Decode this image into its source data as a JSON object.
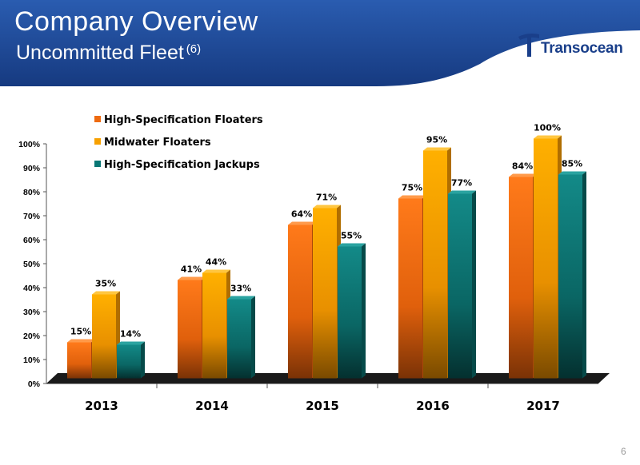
{
  "header": {
    "title": "Company Overview",
    "subtitle": "Uncommitted Fleet",
    "footnote_ref": "(6)"
  },
  "logo": {
    "text": "Transocean"
  },
  "page_number": "6",
  "colors": {
    "banner": "#1b4592",
    "floaters": "#ee6a10",
    "midwater": "#f7a000",
    "jackups": "#0a7775",
    "floor": "#1a1a1a"
  },
  "chart_data": {
    "type": "bar",
    "categories": [
      "2013",
      "2014",
      "2015",
      "2016",
      "2017"
    ],
    "series": [
      {
        "name": "High-Specification Floaters",
        "values": [
          15,
          41,
          64,
          75,
          84
        ],
        "labels": [
          "15%",
          "41%",
          "64%",
          "75%",
          "84%"
        ]
      },
      {
        "name": "Midwater Floaters",
        "values": [
          35,
          44,
          71,
          95,
          100
        ],
        "labels": [
          "35%",
          "44%",
          "71%",
          "95%",
          "100%"
        ]
      },
      {
        "name": "High-Specification Jackups",
        "values": [
          14,
          33,
          55,
          77,
          85
        ],
        "labels": [
          "14%",
          "33%",
          "55%",
          "77%",
          "85%"
        ]
      }
    ],
    "yticks": [
      "0%",
      "10%",
      "20%",
      "30%",
      "40%",
      "50%",
      "60%",
      "70%",
      "80%",
      "90%",
      "100%"
    ],
    "ylim": [
      0,
      100
    ],
    "unit": "%",
    "legend": "top-left",
    "grid": false
  }
}
